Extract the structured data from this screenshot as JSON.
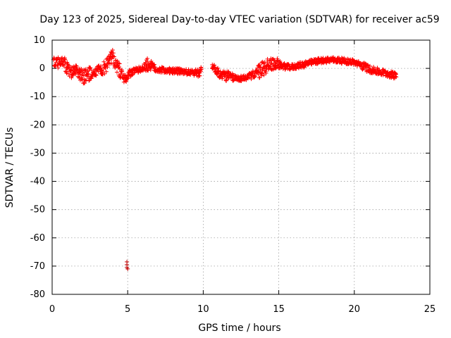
{
  "chart_data": {
    "type": "scatter",
    "title": "Day 123 of 2025, Sidereal Day-to-day VTEC variation (SDTVAR) for receiver ac59",
    "xlabel": "GPS time / hours",
    "ylabel": "SDTVAR / TECUs",
    "xlim": [
      0,
      25
    ],
    "ylim": [
      -80,
      10
    ],
    "xticks": [
      0,
      5,
      10,
      15,
      20,
      25
    ],
    "yticks": [
      10,
      0,
      -10,
      -20,
      -30,
      -40,
      -50,
      -60,
      -70,
      -80
    ],
    "grid": true,
    "marker": "+",
    "series": [
      {
        "name": "SDTVAR",
        "color": "#ff0000",
        "band": [
          [
            0.1,
            2.5,
            1.5
          ],
          [
            0.4,
            2.0,
            2.0
          ],
          [
            0.7,
            2.5,
            1.5
          ],
          [
            0.9,
            1.0,
            2.5
          ],
          [
            1.1,
            -1.0,
            2.0
          ],
          [
            1.3,
            -1.5,
            2.0
          ],
          [
            1.5,
            -0.5,
            1.5
          ],
          [
            1.7,
            -1.0,
            2.0
          ],
          [
            1.9,
            -2.5,
            2.5
          ],
          [
            2.1,
            -3.0,
            2.5
          ],
          [
            2.3,
            -2.0,
            2.5
          ],
          [
            2.5,
            -2.0,
            2.5
          ],
          [
            2.7,
            -1.5,
            1.0
          ],
          [
            3.2,
            -0.5,
            2.0
          ],
          [
            3.5,
            0.5,
            2.5
          ],
          [
            3.8,
            3.0,
            2.0
          ],
          [
            4.0,
            4.0,
            2.0
          ],
          [
            4.2,
            1.5,
            2.5
          ],
          [
            4.5,
            -1.0,
            2.5
          ],
          [
            4.7,
            -3.0,
            2.0
          ],
          [
            4.9,
            -4.0,
            1.5
          ],
          [
            5.1,
            -2.0,
            1.5
          ],
          [
            5.4,
            -1.0,
            1.0
          ],
          [
            5.7,
            -0.5,
            1.0
          ],
          [
            6.0,
            0.0,
            1.0
          ],
          [
            6.3,
            1.0,
            2.0
          ],
          [
            6.6,
            1.0,
            1.5
          ],
          [
            6.9,
            -0.5,
            1.0
          ],
          [
            7.3,
            -0.5,
            1.0
          ],
          [
            7.6,
            -0.8,
            1.0
          ],
          [
            8.0,
            -1.0,
            1.0
          ],
          [
            8.4,
            -1.0,
            1.0
          ],
          [
            8.8,
            -1.2,
            1.0
          ],
          [
            9.2,
            -1.5,
            1.0
          ],
          [
            9.6,
            -1.5,
            1.5
          ],
          [
            9.9,
            -1.0,
            1.5
          ],
          [
            10.6,
            1.0,
            1.2
          ],
          [
            10.9,
            -1.0,
            1.5
          ],
          [
            11.2,
            -2.5,
            1.5
          ],
          [
            11.5,
            -2.5,
            2.0
          ],
          [
            11.8,
            -3.0,
            1.5
          ],
          [
            12.2,
            -3.5,
            1.0
          ],
          [
            12.6,
            -3.5,
            1.0
          ],
          [
            13.0,
            -3.0,
            1.0
          ],
          [
            13.4,
            -2.0,
            1.5
          ],
          [
            13.7,
            -1.0,
            2.5
          ],
          [
            14.0,
            0.0,
            3.0
          ],
          [
            14.3,
            1.5,
            2.5
          ],
          [
            14.6,
            1.5,
            2.0
          ],
          [
            14.9,
            1.5,
            1.5
          ],
          [
            15.2,
            1.0,
            1.2
          ],
          [
            15.5,
            0.5,
            1.0
          ],
          [
            15.9,
            0.5,
            1.0
          ],
          [
            16.3,
            1.0,
            1.0
          ],
          [
            16.7,
            1.5,
            1.2
          ],
          [
            17.1,
            2.0,
            1.0
          ],
          [
            17.5,
            2.5,
            1.0
          ],
          [
            17.9,
            2.8,
            1.0
          ],
          [
            18.3,
            3.0,
            1.0
          ],
          [
            18.7,
            3.0,
            1.0
          ],
          [
            19.1,
            2.8,
            1.0
          ],
          [
            19.5,
            2.5,
            1.0
          ],
          [
            19.9,
            2.3,
            1.0
          ],
          [
            20.3,
            1.5,
            1.0
          ],
          [
            20.7,
            0.5,
            1.5
          ],
          [
            21.1,
            -0.5,
            1.2
          ],
          [
            21.5,
            -1.0,
            1.2
          ],
          [
            21.9,
            -1.5,
            1.2
          ],
          [
            22.3,
            -2.0,
            1.2
          ],
          [
            22.6,
            -2.5,
            1.2
          ],
          [
            22.8,
            -2.0,
            1.0
          ]
        ],
        "outliers": [
          [
            4.95,
            -68.5
          ],
          [
            4.95,
            -69.5
          ],
          [
            4.95,
            -70.5
          ],
          [
            5.0,
            -71.0
          ]
        ]
      }
    ]
  }
}
